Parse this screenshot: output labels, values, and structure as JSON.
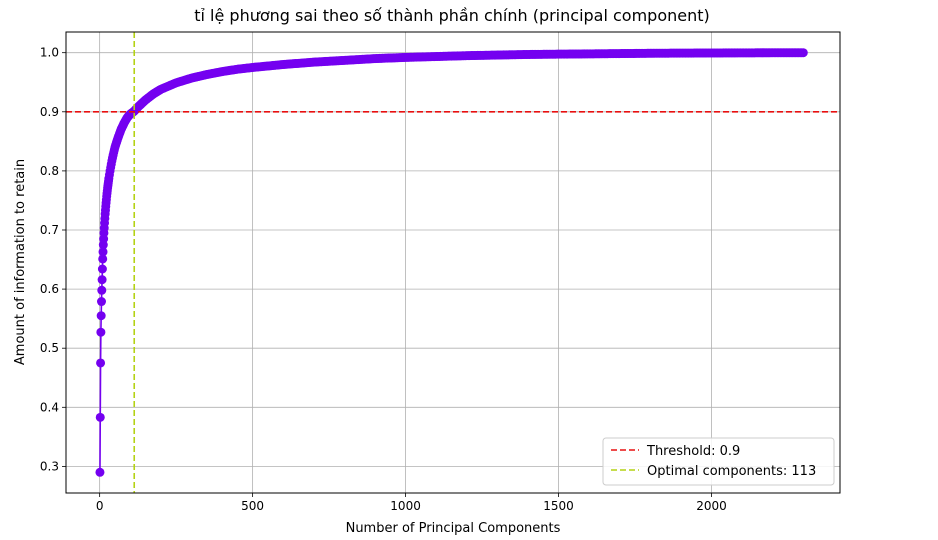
{
  "chart_data": {
    "type": "line",
    "title": "tỉ lệ phương sai theo số thành phần chính (principal component)",
    "xlabel": "Number of Principal Components",
    "ylabel": "Amount of information to retain",
    "xlim": [
      -110,
      2420
    ],
    "ylim": [
      0.255,
      1.035
    ],
    "xticks": [
      0,
      500,
      1000,
      1500,
      2000
    ],
    "xtick_labels": [
      "0",
      "500",
      "1000",
      "1500",
      "2000"
    ],
    "yticks": [
      0.3,
      0.4,
      0.5,
      0.6,
      0.7,
      0.8,
      0.9,
      1.0
    ],
    "ytick_labels": [
      "0.3",
      "0.4",
      "0.5",
      "0.6",
      "0.7",
      "0.8",
      "0.9",
      "1.0"
    ],
    "grid": true,
    "legend_position": "lower-right",
    "series": [
      {
        "kind": "line-with-markers",
        "color": "#7400f0",
        "x": [
          1,
          2,
          3,
          4,
          5,
          6,
          7,
          8,
          9,
          10,
          12,
          14,
          16,
          18,
          20,
          23,
          26,
          30,
          35,
          40,
          45,
          50,
          60,
          70,
          80,
          90,
          100,
          113,
          125,
          150,
          175,
          200,
          250,
          300,
          350,
          400,
          450,
          500,
          600,
          700,
          800,
          900,
          1000,
          1200,
          1400,
          1600,
          1800,
          2000,
          2200,
          2300
        ],
        "y": [
          0.29,
          0.383,
          0.475,
          0.527,
          0.555,
          0.579,
          0.598,
          0.616,
          0.634,
          0.651,
          0.675,
          0.695,
          0.712,
          0.727,
          0.74,
          0.757,
          0.771,
          0.787,
          0.803,
          0.817,
          0.829,
          0.84,
          0.856,
          0.87,
          0.881,
          0.89,
          0.896,
          0.901,
          0.908,
          0.92,
          0.93,
          0.938,
          0.949,
          0.957,
          0.963,
          0.968,
          0.972,
          0.975,
          0.98,
          0.984,
          0.987,
          0.99,
          0.992,
          0.995,
          0.997,
          0.998,
          0.999,
          0.9995,
          0.9999,
          1.0
        ]
      }
    ],
    "threshold": {
      "value": 0.9,
      "color": "#e81010",
      "legend_label": "Threshold: 0.9"
    },
    "optimal": {
      "value": 113,
      "color": "#b4d214",
      "legend_label": "Optimal components: 113"
    }
  }
}
